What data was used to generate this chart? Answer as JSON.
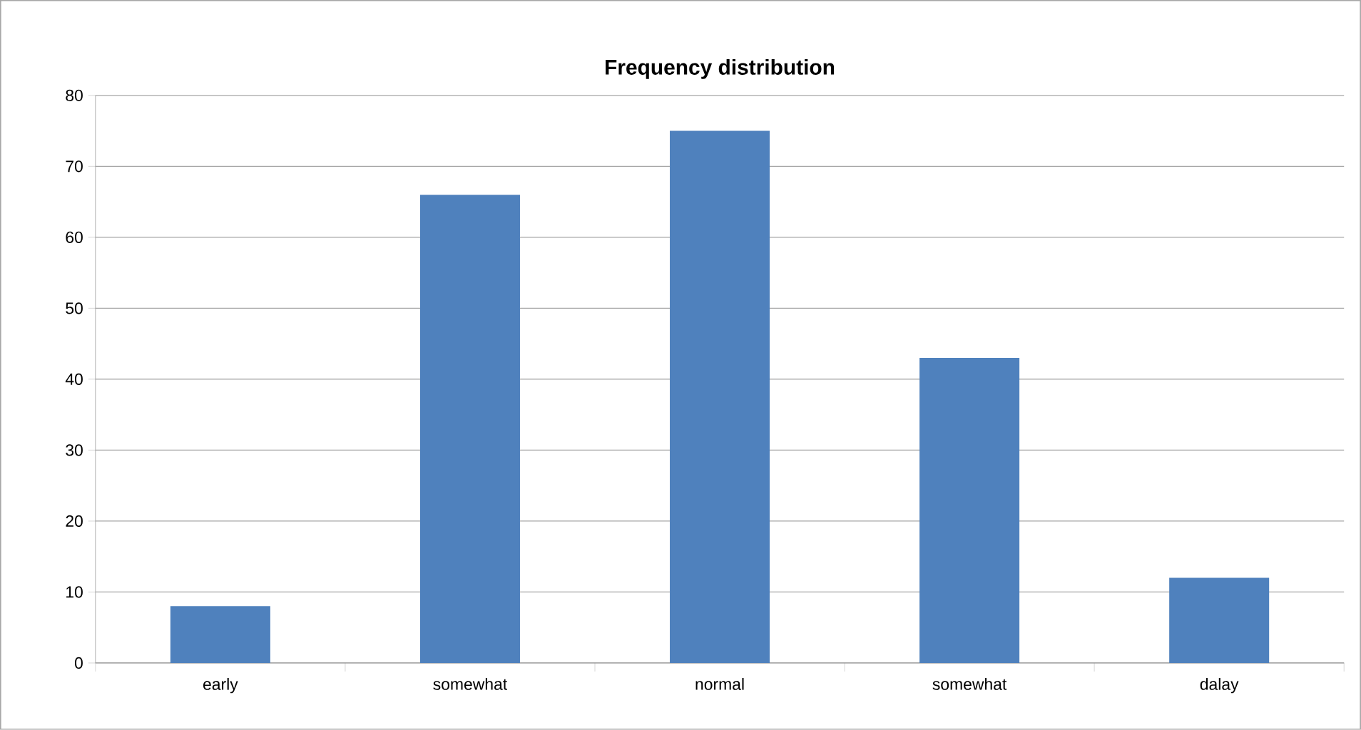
{
  "chart_data": {
    "type": "bar",
    "title": "Frequency distribution",
    "categories": [
      "early",
      "somewhat",
      "normal",
      "somewhat",
      "dalay"
    ],
    "values": [
      8,
      66,
      75,
      43,
      12
    ],
    "color": "#4f81bd",
    "ylim": [
      0,
      80
    ],
    "yticks": [
      0,
      10,
      20,
      30,
      40,
      50,
      60,
      70,
      80
    ],
    "grid": "y"
  }
}
